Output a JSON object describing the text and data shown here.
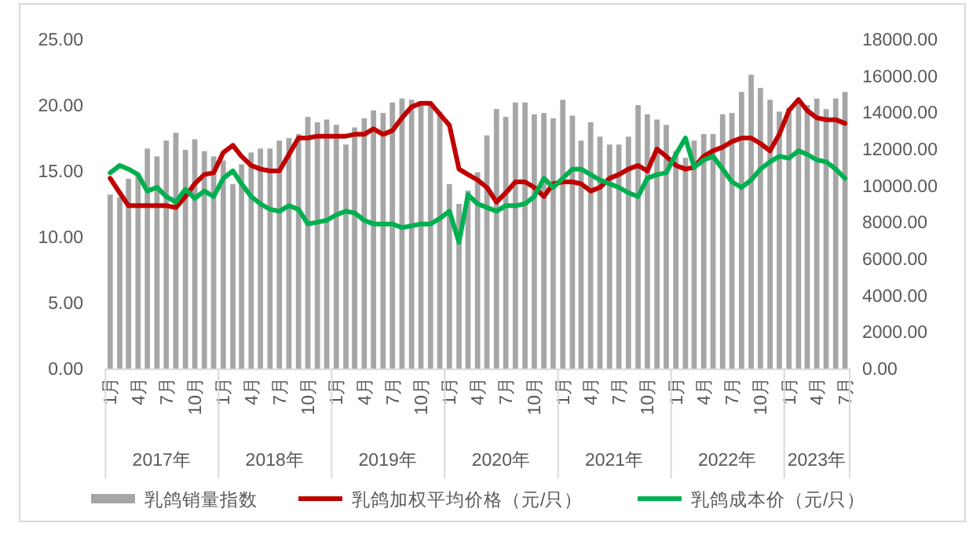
{
  "chart_data": {
    "type": "bar",
    "x": [
      "2017-01",
      "2017-02",
      "2017-03",
      "2017-04",
      "2017-05",
      "2017-06",
      "2017-07",
      "2017-08",
      "2017-09",
      "2017-10",
      "2017-11",
      "2017-12",
      "2018-01",
      "2018-02",
      "2018-03",
      "2018-04",
      "2018-05",
      "2018-06",
      "2018-07",
      "2018-08",
      "2018-09",
      "2018-10",
      "2018-11",
      "2018-12",
      "2019-01",
      "2019-02",
      "2019-03",
      "2019-04",
      "2019-05",
      "2019-06",
      "2019-07",
      "2019-08",
      "2019-09",
      "2019-10",
      "2019-11",
      "2019-12",
      "2020-01",
      "2020-02",
      "2020-03",
      "2020-04",
      "2020-05",
      "2020-06",
      "2020-07",
      "2020-08",
      "2020-09",
      "2020-10",
      "2020-11",
      "2020-12",
      "2021-01",
      "2021-02",
      "2021-03",
      "2021-04",
      "2021-05",
      "2021-06",
      "2021-07",
      "2021-08",
      "2021-09",
      "2021-10",
      "2021-11",
      "2021-12",
      "2022-01",
      "2022-02",
      "2022-03",
      "2022-04",
      "2022-05",
      "2022-06",
      "2022-07",
      "2022-08",
      "2022-09",
      "2022-10",
      "2022-11",
      "2022-12",
      "2023-01",
      "2023-02",
      "2023-03",
      "2023-04",
      "2023-05",
      "2023-06",
      "2023-07"
    ],
    "xticks": [
      {
        "value": "2017-01",
        "label": "1月"
      },
      {
        "value": "2017-04",
        "label": "4月"
      },
      {
        "value": "2017-07",
        "label": "7月"
      },
      {
        "value": "2017-10",
        "label": "10月"
      },
      {
        "value": "2018-01",
        "label": "1月"
      },
      {
        "value": "2018-04",
        "label": "4月"
      },
      {
        "value": "2018-07",
        "label": "7月"
      },
      {
        "value": "2018-10",
        "label": "10月"
      },
      {
        "value": "2019-01",
        "label": "1月"
      },
      {
        "value": "2019-04",
        "label": "4月"
      },
      {
        "value": "2019-07",
        "label": "7月"
      },
      {
        "value": "2019-10",
        "label": "10月"
      },
      {
        "value": "2020-01",
        "label": "1月"
      },
      {
        "value": "2020-04",
        "label": "4月"
      },
      {
        "value": "2020-07",
        "label": "7月"
      },
      {
        "value": "2020-10",
        "label": "10月"
      },
      {
        "value": "2021-01",
        "label": "1月"
      },
      {
        "value": "2021-04",
        "label": "4月"
      },
      {
        "value": "2021-07",
        "label": "7月"
      },
      {
        "value": "2021-10",
        "label": "10月"
      },
      {
        "value": "2022-01",
        "label": "1月"
      },
      {
        "value": "2022-04",
        "label": "4月"
      },
      {
        "value": "2022-07",
        "label": "7月"
      },
      {
        "value": "2022-10",
        "label": "10月"
      },
      {
        "value": "2023-01",
        "label": "1月"
      },
      {
        "value": "2023-04",
        "label": "4月"
      },
      {
        "value": "2023-07",
        "label": "7月"
      }
    ],
    "annotations": [
      "2017年",
      "2018年",
      "2019年",
      "2020年",
      "2021年",
      "2022年",
      "2023年"
    ],
    "xlim": [
      "2016-12-16",
      "2023-07-16"
    ],
    "ylim": [
      0,
      25
    ],
    "yticks": [
      {
        "value": 0,
        "label": "0.00"
      },
      {
        "value": 5,
        "label": "5.00"
      },
      {
        "value": 10,
        "label": "10.00"
      },
      {
        "value": 15,
        "label": "15.00"
      },
      {
        "value": 20,
        "label": "20.00"
      },
      {
        "value": 25,
        "label": "25.00"
      }
    ],
    "y2lim": [
      0,
      18000
    ],
    "y2ticks": [
      {
        "value": 0,
        "label": "0.00"
      },
      {
        "value": 2000,
        "label": "2000.00"
      },
      {
        "value": 4000,
        "label": "4000.00"
      },
      {
        "value": 6000,
        "label": "6000.00"
      },
      {
        "value": 8000,
        "label": "8000.00"
      },
      {
        "value": 10000,
        "label": "10000.00"
      },
      {
        "value": 12000,
        "label": "12000.00"
      },
      {
        "value": 14000,
        "label": "14000.00"
      },
      {
        "value": 16000,
        "label": "16000.00"
      },
      {
        "value": 18000,
        "label": "18000.00"
      }
    ],
    "legend": "bottom",
    "series": [
      {
        "name": "乳鸽销量指数",
        "color": "#a6a6a6",
        "values": [
          13.2,
          13.0,
          14.4,
          14.8,
          16.7,
          16.1,
          17.3,
          17.9,
          16.6,
          17.4,
          16.5,
          16.1,
          15.8,
          14.0,
          15.5,
          16.4,
          16.7,
          16.7,
          17.3,
          17.5,
          17.8,
          19.1,
          18.7,
          18.9,
          18.5,
          17.0,
          18.3,
          19.0,
          19.6,
          19.4,
          20.2,
          20.5,
          20.4,
          20.3,
          20.2,
          19.5,
          14.0,
          12.5,
          13.5,
          14.9,
          17.7,
          19.7,
          19.1,
          20.2,
          20.2,
          19.3,
          19.4,
          19.0,
          20.4,
          19.2,
          17.3,
          18.7,
          17.6,
          17.0,
          17.0,
          17.6,
          20.0,
          19.3,
          18.9,
          18.5,
          16.5,
          16.0,
          17.3,
          17.8,
          17.8,
          19.3,
          19.4,
          21.0,
          22.3,
          21.3,
          20.4,
          19.5,
          19.8,
          20.1,
          20.0,
          20.5,
          19.7,
          20.5,
          21.0
        ]
      },
      {
        "name": "乳鸽加权平均价格（元/只）",
        "type": "line",
        "axis": "y2",
        "color": "#c00000",
        "values": [
          10400,
          9600,
          8900,
          8900,
          8900,
          8900,
          8900,
          8800,
          9400,
          10100,
          10600,
          10700,
          11800,
          12200,
          11600,
          11100,
          10900,
          10800,
          10800,
          11700,
          12600,
          12600,
          12700,
          12700,
          12700,
          12700,
          12800,
          12800,
          13100,
          12800,
          13000,
          13700,
          14300,
          14500,
          14500,
          13900,
          13300,
          10900,
          10600,
          10300,
          9900,
          9100,
          9600,
          10200,
          10200,
          9900,
          9400,
          10100,
          10200,
          10200,
          10100,
          9700,
          9900,
          10400,
          10600,
          10900,
          11100,
          10800,
          12000,
          11600,
          11100,
          10900,
          11000,
          11600,
          11900,
          12100,
          12400,
          12600,
          12600,
          12300,
          11900,
          12800,
          14100,
          14700,
          14100,
          13700,
          13600,
          13600,
          13400
        ]
      },
      {
        "name": "乳鸽成本价（元/只）",
        "type": "line",
        "axis": "y2",
        "color": "#00b050",
        "values": [
          10700,
          11100,
          10900,
          10600,
          9700,
          9900,
          9400,
          9100,
          9800,
          9300,
          9700,
          9400,
          10400,
          10800,
          10100,
          9400,
          9000,
          8700,
          8600,
          8900,
          8700,
          7900,
          8000,
          8100,
          8400,
          8600,
          8500,
          8100,
          7900,
          7900,
          7900,
          7700,
          7800,
          7900,
          7900,
          8200,
          8600,
          6900,
          9500,
          9000,
          8800,
          8600,
          8900,
          8900,
          9000,
          9400,
          10400,
          9900,
          10400,
          10900,
          10900,
          10600,
          10300,
          10100,
          9900,
          9600,
          9400,
          10400,
          10600,
          10700,
          11700,
          12600,
          11000,
          11400,
          11600,
          10900,
          10200,
          9900,
          10300,
          10900,
          11300,
          11600,
          11500,
          11900,
          11700,
          11400,
          11300,
          10900,
          10400
        ]
      }
    ]
  }
}
